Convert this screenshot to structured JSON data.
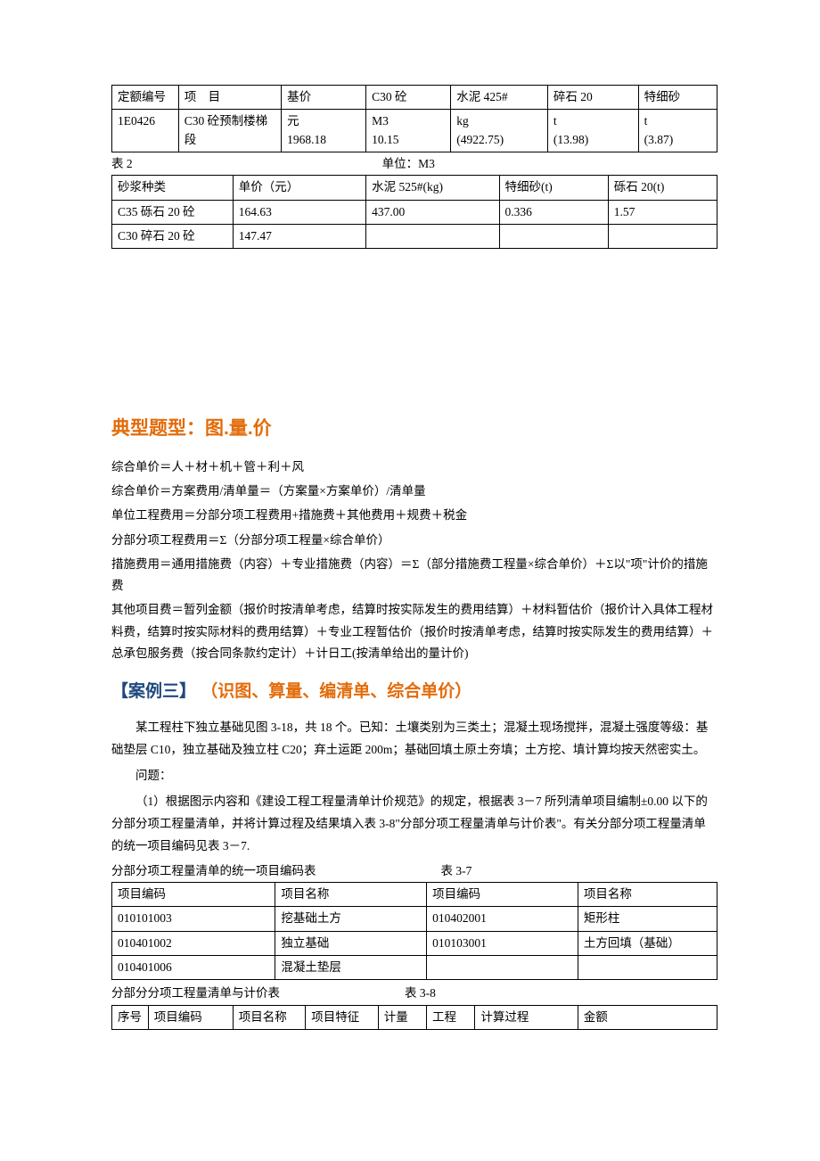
{
  "table1": {
    "headers": [
      "定额编号",
      "项　目",
      "基价",
      "C30 砼",
      "水泥 425#",
      "碎石 20",
      "特细砂"
    ],
    "row": {
      "c0": "1E0426",
      "c1": "C30 砼预制楼梯段",
      "c2a": "元",
      "c2b": "1968.18",
      "c3a": "M3",
      "c3b": "10.15",
      "c4a": "kg",
      "c4b": "(4922.75)",
      "c5a": "t",
      "c5b": "(13.98)",
      "c6a": "t",
      "c6b": "(3.87)"
    }
  },
  "table2": {
    "label_left": "表 2",
    "label_right": "单位：M3",
    "headers": [
      "砂浆种类",
      "单价（元）",
      "水泥 525#(kg)",
      "特细砂(t)",
      "砾石 20(t)"
    ],
    "rows": [
      [
        "C35 砾石 20 砼",
        "164.63",
        "437.00",
        "0.336",
        "1.57"
      ],
      [
        "C30 碎石 20 砼",
        "147.47",
        "",
        "",
        ""
      ]
    ]
  },
  "section_title": "典型题型：图.量.价",
  "formulas": [
    "综合单价＝人＋材＋机＋管＋利＋风",
    "综合单价＝方案费用/清单量＝（方案量×方案单价）/清单量",
    "单位工程费用＝分部分项工程费用+措施费＋其他费用＋规费＋税金",
    "分部分项工程费用＝Σ（分部分项工程量×综合单价）",
    "措施费用＝通用措施费（内容）＋专业措施费（内容）＝Σ（部分措施费工程量×综合单价）＋Σ以\"项\"计价的措施费",
    "其他项目费＝暂列金额（报价时按清单考虑，结算时按实际发生的费用结算）＋材料暂估价（报价计入具体工程材料费，结算时按实际材料的费用结算）＋专业工程暂估价（报价时按清单考虑，结算时按实际发生的费用结算）＋总承包服务费（按合同条款约定计）＋计日工(按清单给出的量计价)"
  ],
  "case": {
    "bracket": "【案例三】",
    "sub": "（识图、算量、编清单、综合单价）"
  },
  "body": [
    "某工程柱下独立基础见图 3-18，共 18 个。已知：土壤类别为三类土；混凝土现场搅拌，混凝土强度等级：基础垫层 C10，独立基础及独立柱 C20；弃土运距 200m；基础回填土原土夯填；土方挖、填计算均按天然密实土。",
    "问题：",
    "（1）根据图示内容和《建设工程工程量清单计价规范》的规定，根据表 3－7 所列清单项目编制±0.00 以下的分部分项工程量清单，并将计算过程及结果填入表 3-8\"分部分项工程量清单与计价表\"。有关分部分项工程量清单的统一项目编码见表 3－7."
  ],
  "table3": {
    "caption_left": "分部分项工程量清单的统一项目编码表",
    "caption_right": "表 3-7",
    "headers": [
      "项目编码",
      "项目名称",
      "项目编码",
      "项目名称"
    ],
    "rows": [
      [
        "010101003",
        "挖基础土方",
        "010402001",
        "矩形柱"
      ],
      [
        "010401002",
        "独立基础",
        "010103001",
        "土方回填（基础）"
      ],
      [
        "010401006",
        "混凝土垫层",
        "",
        ""
      ]
    ]
  },
  "table4": {
    "caption_left": "分部分分项工程量清单与计价表",
    "caption_right": "表 3-8",
    "headers": [
      "序号",
      "项目编码",
      "项目名称",
      "项目特征",
      "计量",
      "工程",
      "计算过程",
      "金额"
    ]
  },
  "colors": {
    "orange": "#e36c0a",
    "blue": "#1f497d"
  }
}
